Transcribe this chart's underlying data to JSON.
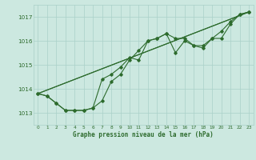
{
  "title": "Graphe pression niveau de la mer (hPa)",
  "background_color": "#cce8e0",
  "grid_color": "#aad0c8",
  "line_color": "#2d6b2d",
  "xlim": [
    -0.5,
    23.5
  ],
  "ylim": [
    1012.5,
    1017.5
  ],
  "yticks": [
    1013,
    1014,
    1015,
    1016,
    1017
  ],
  "xticks": [
    0,
    1,
    2,
    3,
    4,
    5,
    6,
    7,
    8,
    9,
    10,
    11,
    12,
    13,
    14,
    15,
    16,
    17,
    18,
    19,
    20,
    21,
    22,
    23
  ],
  "series": [
    {
      "x": [
        0,
        1,
        2,
        3,
        4,
        5,
        6,
        7,
        8,
        9,
        10,
        11,
        12,
        13,
        14,
        15,
        16,
        17,
        18,
        19,
        20,
        21,
        22,
        23
      ],
      "y": [
        1013.8,
        1013.7,
        1013.4,
        1013.1,
        1013.1,
        1013.1,
        1013.2,
        1014.4,
        1014.6,
        1014.9,
        1015.3,
        1015.2,
        1016.0,
        1016.1,
        1016.3,
        1016.1,
        1016.1,
        1015.8,
        1015.8,
        1016.1,
        1016.4,
        1016.8,
        1017.1,
        1017.2
      ]
    },
    {
      "x": [
        0,
        1,
        2,
        3,
        4,
        5,
        6,
        7,
        8,
        9,
        10,
        11,
        12,
        13,
        14,
        15,
        16,
        17,
        18,
        19,
        20,
        21,
        22,
        23
      ],
      "y": [
        1013.8,
        1013.7,
        1013.4,
        1013.1,
        1013.1,
        1013.1,
        1013.2,
        1013.5,
        1014.3,
        1014.6,
        1015.2,
        1015.6,
        1016.0,
        1016.1,
        1016.3,
        1015.5,
        1016.0,
        1015.8,
        1015.7,
        1016.1,
        1016.1,
        1016.7,
        1017.1,
        1017.2
      ]
    },
    {
      "x": [
        0,
        23
      ],
      "y": [
        1013.8,
        1017.2
      ]
    },
    {
      "x": [
        0,
        23
      ],
      "y": [
        1013.8,
        1017.2
      ]
    }
  ]
}
